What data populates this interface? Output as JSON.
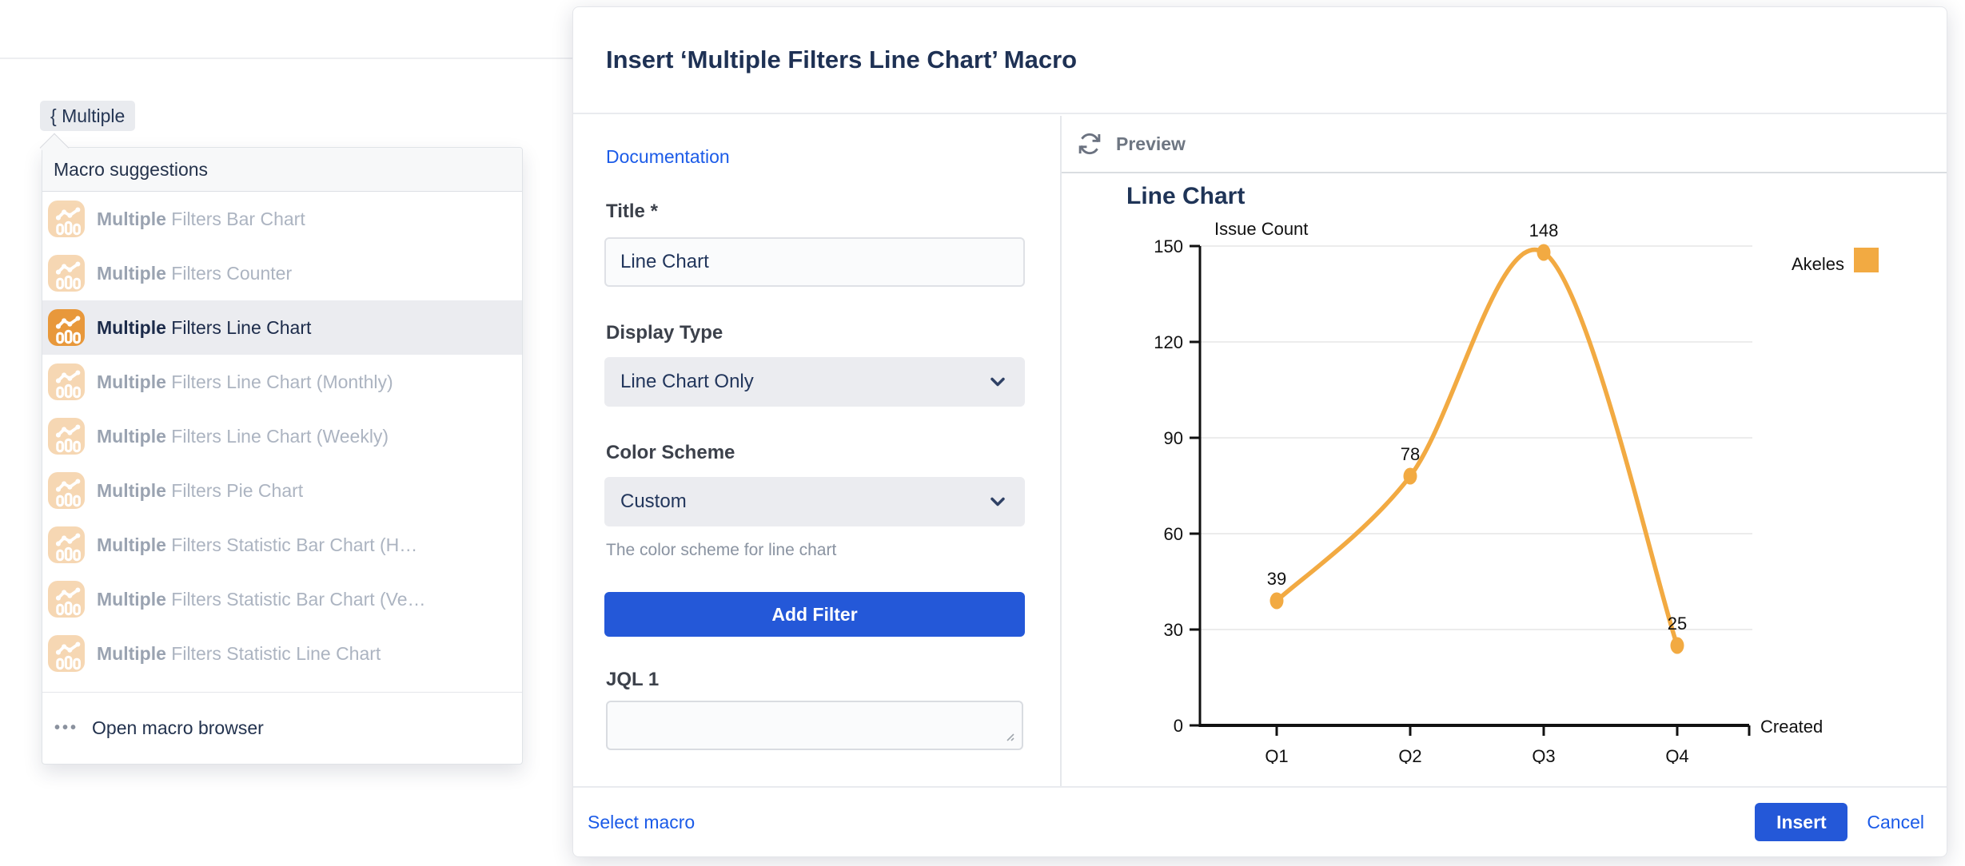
{
  "editor": {
    "macro_token": "{ Multiple"
  },
  "macro_menu": {
    "header": "Macro suggestions",
    "items": [
      {
        "bold": "Multiple",
        "rest": " Filters Bar Chart",
        "selected": false
      },
      {
        "bold": "Multiple",
        "rest": " Filters Counter",
        "selected": false
      },
      {
        "bold": "Multiple",
        "rest": " Filters Line Chart",
        "selected": true
      },
      {
        "bold": "Multiple",
        "rest": " Filters Line Chart (Monthly)",
        "selected": false
      },
      {
        "bold": "Multiple",
        "rest": " Filters Line Chart (Weekly)",
        "selected": false
      },
      {
        "bold": "Multiple",
        "rest": " Filters Pie Chart",
        "selected": false
      },
      {
        "bold": "Multiple",
        "rest": " Filters Statistic Bar Chart (H…",
        "selected": false
      },
      {
        "bold": "Multiple",
        "rest": " Filters Statistic Bar Chart (Ve…",
        "selected": false
      },
      {
        "bold": "Multiple",
        "rest": " Filters Statistic Line Chart",
        "selected": false
      }
    ],
    "footer_label": "Open macro browser"
  },
  "dialog": {
    "title": "Insert ‘Multiple Filters Line Chart’ Macro",
    "documentation_link": "Documentation",
    "fields": {
      "title": {
        "label": "Title *",
        "value": "Line Chart"
      },
      "display_type": {
        "label": "Display Type",
        "value": "Line Chart Only"
      },
      "color_scheme": {
        "label": "Color Scheme",
        "value": "Custom",
        "help": "The color scheme for line chart"
      },
      "jql1": {
        "label": "JQL 1",
        "value": ""
      }
    },
    "add_filter_label": "Add Filter",
    "footer": {
      "select_macro": "Select macro",
      "insert": "Insert",
      "cancel": "Cancel"
    }
  },
  "preview": {
    "label": "Preview"
  },
  "chart_data": {
    "type": "line",
    "title": "Line Chart",
    "x_axis_label": "Created",
    "y_axis_label": "Issue Count",
    "categories": [
      "Q1",
      "Q2",
      "Q3",
      "Q4"
    ],
    "series": [
      {
        "name": "Akeles",
        "color": "#F2AA42",
        "values": [
          39,
          78,
          148,
          25
        ]
      }
    ],
    "ylim": [
      0,
      150
    ],
    "yticks": [
      0,
      30,
      60,
      90,
      120,
      150
    ],
    "grid": true,
    "legend_position": "right"
  },
  "colors": {
    "accent_blue": "#2458D8",
    "link_blue": "#1B5BE8",
    "macro_orange": "#E8983B",
    "selected_row_bg": "#EBECF0"
  }
}
